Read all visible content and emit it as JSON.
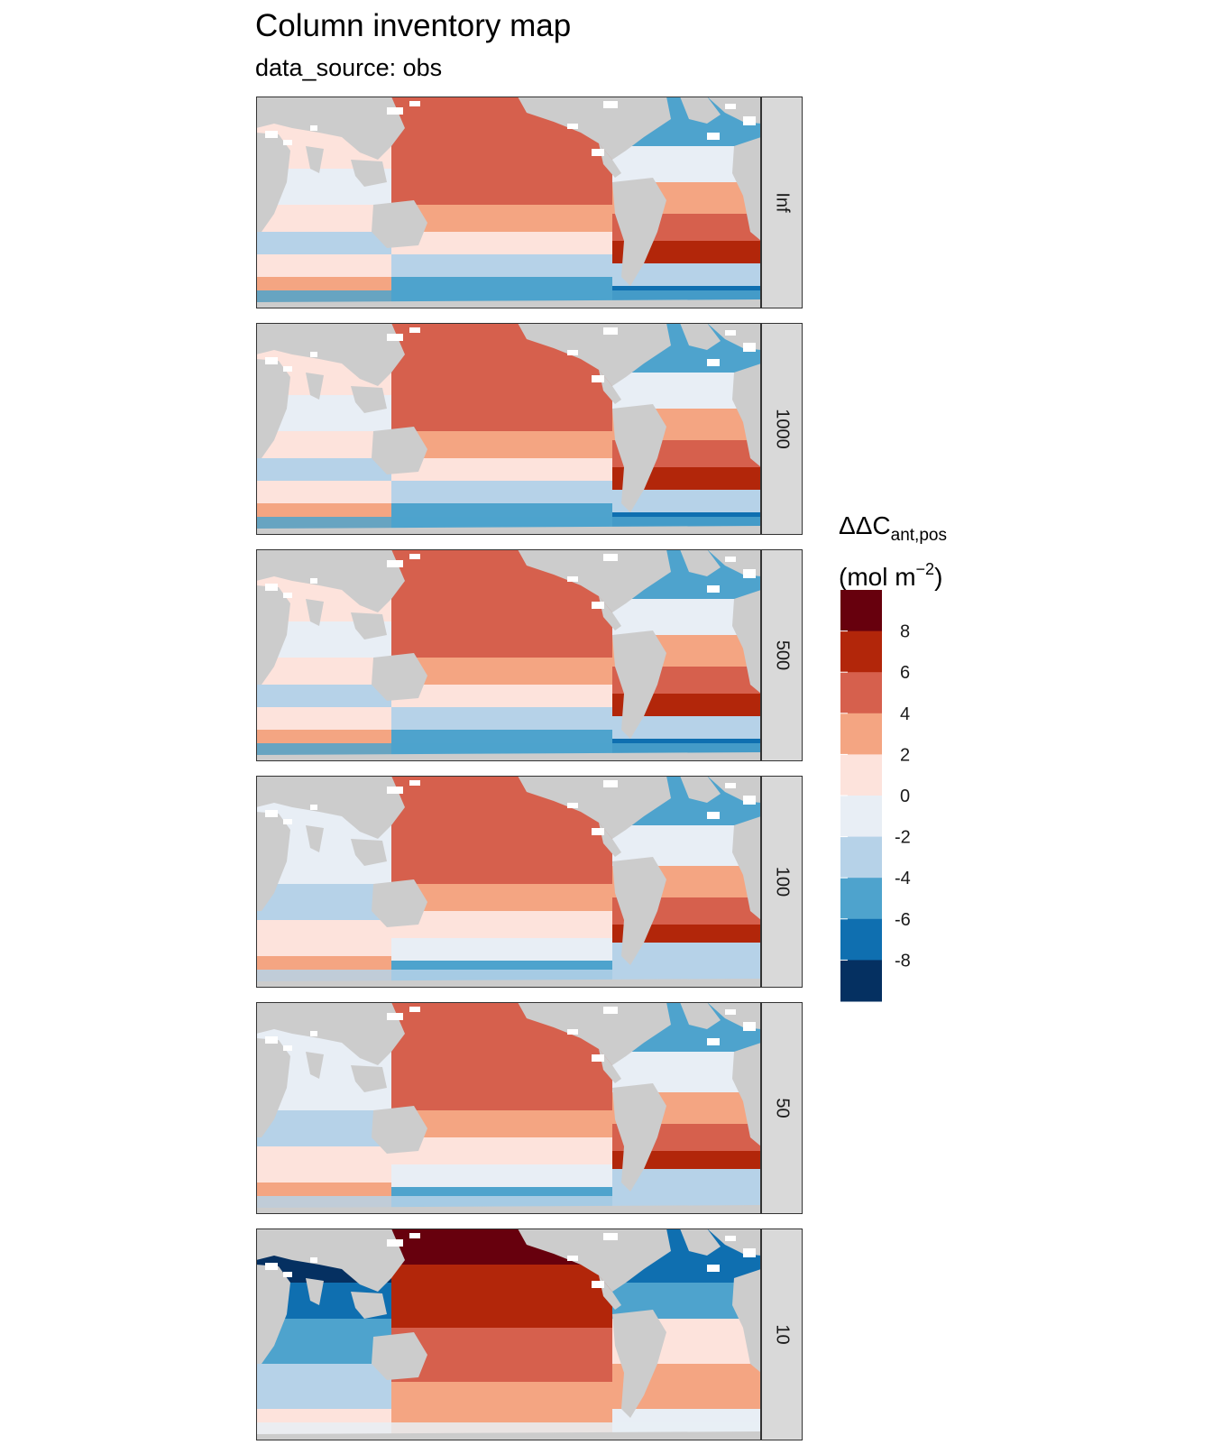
{
  "title": "Column inventory map",
  "subtitle": "data_source: obs",
  "panels": [
    {
      "label": "Inf",
      "pattern": "base"
    },
    {
      "label": "1000",
      "pattern": "base"
    },
    {
      "label": "500",
      "pattern": "base"
    },
    {
      "label": "100",
      "pattern": "soft"
    },
    {
      "label": "50",
      "pattern": "soft"
    },
    {
      "label": "10",
      "pattern": "strong"
    }
  ],
  "legend": {
    "title_main": "ΔΔC",
    "title_sub": "ant,pos",
    "units_open": "(mol m",
    "units_sup": "−2",
    "units_close": ")",
    "ticks": [
      "8",
      "6",
      "4",
      "2",
      "0",
      "-2",
      "-4",
      "-6",
      "-8"
    ],
    "colors": [
      "#67000d",
      "#b2260a",
      "#d6604d",
      "#f4a582",
      "#fde3dc",
      "#e8eef5",
      "#b6d2e8",
      "#4ea3cd",
      "#0f6fb0",
      "#053061"
    ]
  },
  "colors": {
    "land": "#cccccc",
    "strip": "#d9d9d9",
    "border": "#333333"
  }
}
